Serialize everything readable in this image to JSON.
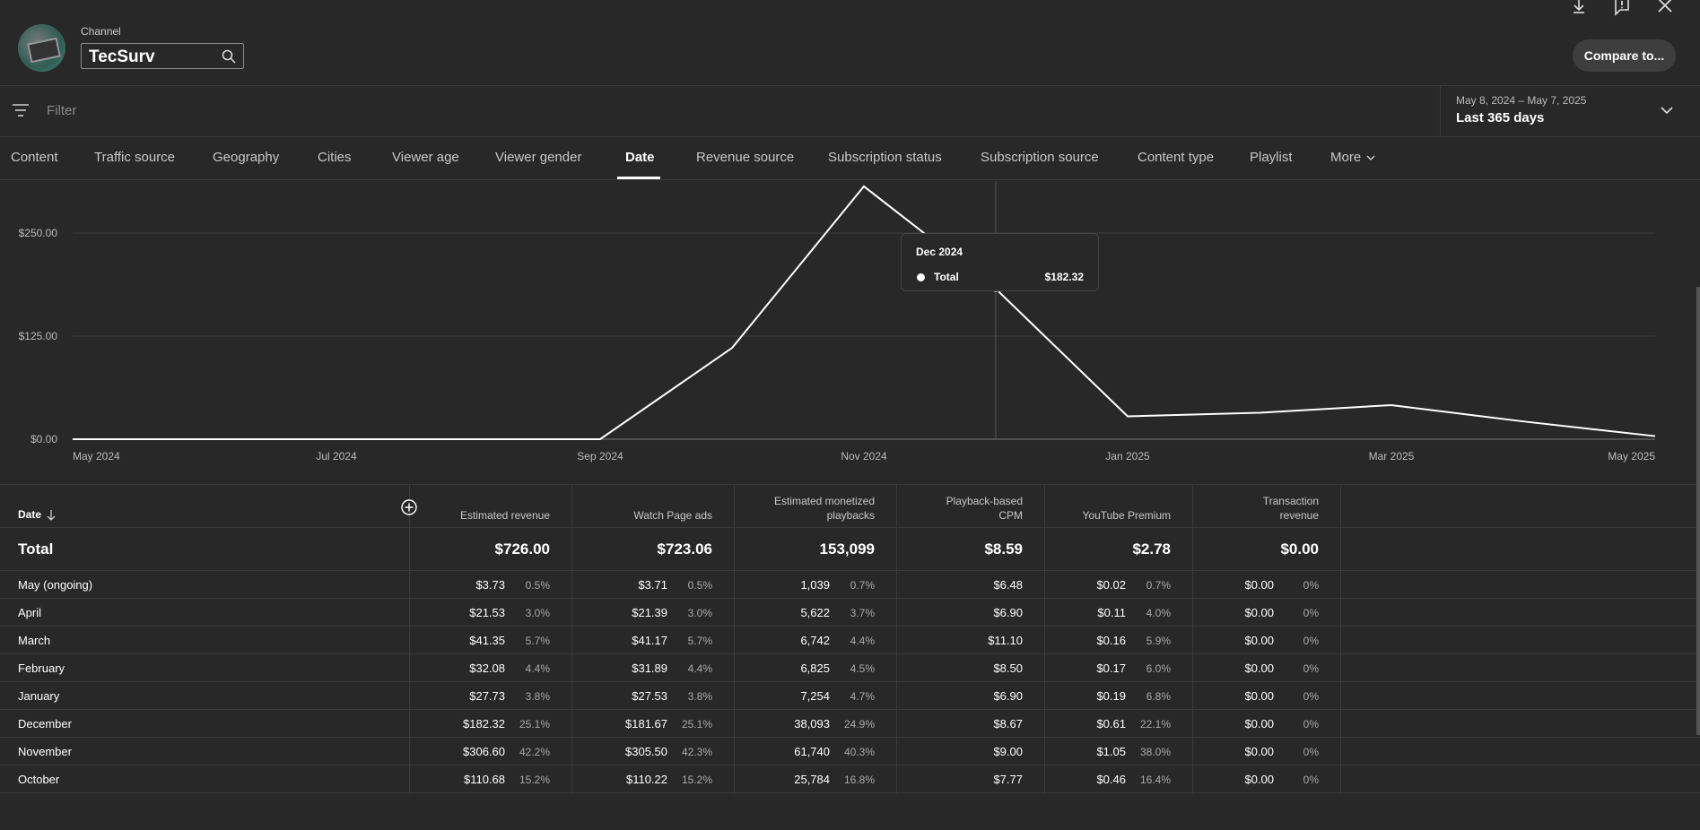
{
  "header": {
    "channel_label": "Channel",
    "channel_name": "TecSurv",
    "compare_label": "Compare to..."
  },
  "filter": {
    "placeholder": "Filter"
  },
  "date_range": {
    "range": "May 8, 2024 – May 7, 2025",
    "label": "Last 365 days"
  },
  "tabs": [
    {
      "label": "Content"
    },
    {
      "label": "Traffic source"
    },
    {
      "label": "Geography"
    },
    {
      "label": "Cities"
    },
    {
      "label": "Viewer age"
    },
    {
      "label": "Viewer gender"
    },
    {
      "label": "Date"
    },
    {
      "label": "Revenue source"
    },
    {
      "label": "Subscription status"
    },
    {
      "label": "Subscription source"
    },
    {
      "label": "Content type"
    },
    {
      "label": "Playlist"
    },
    {
      "label": "More"
    }
  ],
  "active_tab": "Date",
  "chart_data": {
    "type": "line",
    "y_ticks": [
      "$0.00",
      "$125.00",
      "$250.00"
    ],
    "ylim": [
      0,
      300
    ],
    "x_ticks": [
      "May 2024",
      "Jul 2024",
      "Sep 2024",
      "Nov 2024",
      "Jan 2025",
      "Mar 2025",
      "May 2025"
    ],
    "x": [
      "May 2024",
      "Jun 2024",
      "Jul 2024",
      "Aug 2024",
      "Sep 2024",
      "Oct 2024",
      "Nov 2024",
      "Dec 2024",
      "Jan 2025",
      "Feb 2025",
      "Mar 2025",
      "Apr 2025",
      "May 2025"
    ],
    "series": [
      {
        "name": "Total",
        "values": [
          0,
          0,
          0,
          0,
          0,
          110.68,
          306.6,
          182.32,
          27.73,
          32.08,
          41.35,
          21.53,
          3.73
        ]
      }
    ],
    "grid": true,
    "color": "#ffffff"
  },
  "tooltip": {
    "title": "Dec 2024",
    "label": "Total",
    "value": "$182.32"
  },
  "table": {
    "date_header": "Date",
    "columns": [
      {
        "line1": "",
        "line2": "Estimated revenue"
      },
      {
        "line1": "",
        "line2": "Watch Page ads"
      },
      {
        "line1": "Estimated monetized",
        "line2": "playbacks"
      },
      {
        "line1": "Playback-based",
        "line2": "CPM"
      },
      {
        "line1": "",
        "line2": "YouTube Premium"
      },
      {
        "line1": "Transaction",
        "line2": "revenue"
      }
    ],
    "total": {
      "label": "Total",
      "values": [
        "$726.00",
        "$723.06",
        "153,099",
        "$8.59",
        "$2.78",
        "$0.00"
      ]
    },
    "rows": [
      {
        "label": "May (ongoing)",
        "cells": [
          [
            "$3.73",
            "0.5%"
          ],
          [
            "$3.71",
            "0.5%"
          ],
          [
            "1,039",
            "0.7%"
          ],
          [
            "$6.48",
            ""
          ],
          [
            "$0.02",
            "0.7%"
          ],
          [
            "$0.00",
            "0%"
          ]
        ]
      },
      {
        "label": "April",
        "cells": [
          [
            "$21.53",
            "3.0%"
          ],
          [
            "$21.39",
            "3.0%"
          ],
          [
            "5,622",
            "3.7%"
          ],
          [
            "$6.90",
            ""
          ],
          [
            "$0.11",
            "4.0%"
          ],
          [
            "$0.00",
            "0%"
          ]
        ]
      },
      {
        "label": "March",
        "cells": [
          [
            "$41.35",
            "5.7%"
          ],
          [
            "$41.17",
            "5.7%"
          ],
          [
            "6,742",
            "4.4%"
          ],
          [
            "$11.10",
            ""
          ],
          [
            "$0.16",
            "5.9%"
          ],
          [
            "$0.00",
            "0%"
          ]
        ]
      },
      {
        "label": "February",
        "cells": [
          [
            "$32.08",
            "4.4%"
          ],
          [
            "$31.89",
            "4.4%"
          ],
          [
            "6,825",
            "4.5%"
          ],
          [
            "$8.50",
            ""
          ],
          [
            "$0.17",
            "6.0%"
          ],
          [
            "$0.00",
            "0%"
          ]
        ]
      },
      {
        "label": "January",
        "cells": [
          [
            "$27.73",
            "3.8%"
          ],
          [
            "$27.53",
            "3.8%"
          ],
          [
            "7,254",
            "4.7%"
          ],
          [
            "$6.90",
            ""
          ],
          [
            "$0.19",
            "6.8%"
          ],
          [
            "$0.00",
            "0%"
          ]
        ]
      },
      {
        "label": "December",
        "cells": [
          [
            "$182.32",
            "25.1%"
          ],
          [
            "$181.67",
            "25.1%"
          ],
          [
            "38,093",
            "24.9%"
          ],
          [
            "$8.67",
            ""
          ],
          [
            "$0.61",
            "22.1%"
          ],
          [
            "$0.00",
            "0%"
          ]
        ]
      },
      {
        "label": "November",
        "cells": [
          [
            "$306.60",
            "42.2%"
          ],
          [
            "$305.50",
            "42.3%"
          ],
          [
            "61,740",
            "40.3%"
          ],
          [
            "$9.00",
            ""
          ],
          [
            "$1.05",
            "38.0%"
          ],
          [
            "$0.00",
            "0%"
          ]
        ]
      },
      {
        "label": "October",
        "cells": [
          [
            "$110.68",
            "15.2%"
          ],
          [
            "$110.22",
            "15.2%"
          ],
          [
            "25,784",
            "16.8%"
          ],
          [
            "$7.77",
            ""
          ],
          [
            "$0.46",
            "16.4%"
          ],
          [
            "$0.00",
            "0%"
          ]
        ]
      }
    ]
  }
}
